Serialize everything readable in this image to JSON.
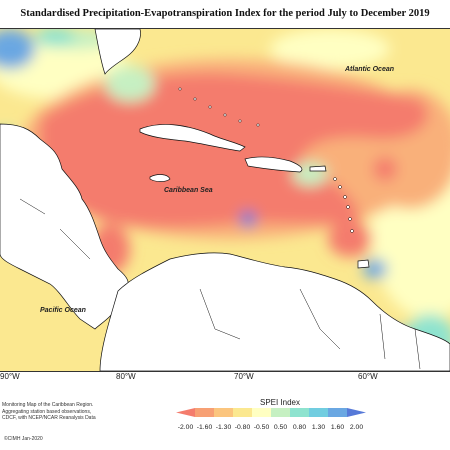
{
  "title": "Standardised Precipitation-Evapotranspiration Index for the period July to December 2019",
  "ocean_labels": {
    "atlantic": "Atlantic Ocean",
    "caribbean": "Caribbean Sea",
    "pacific": "Pacific Ocean"
  },
  "longitude_labels": [
    "90°W",
    "80°W",
    "70°W",
    "60°W"
  ],
  "legend": {
    "title": "SPEI Index",
    "ticks": [
      "-2.00",
      "-1.60",
      "-1.30",
      "-0.80",
      "-0.50",
      "0.50",
      "0.80",
      "1.30",
      "1.60",
      "2.00"
    ],
    "colors": [
      "#f47c6d",
      "#f7a074",
      "#fbc57e",
      "#fbe890",
      "#ffffc2",
      "#c6f0c2",
      "#8ee3cf",
      "#71cde0",
      "#6aa7e2",
      "#5679d8"
    ]
  },
  "credit_lines": [
    "Monitoring Map of the Caribbean Region.",
    "Aggregating station based observations,",
    "CDCF, with NCEP/NCAR Reanalysis Data"
  ],
  "copyright": "©CIMH Jan-2020"
}
